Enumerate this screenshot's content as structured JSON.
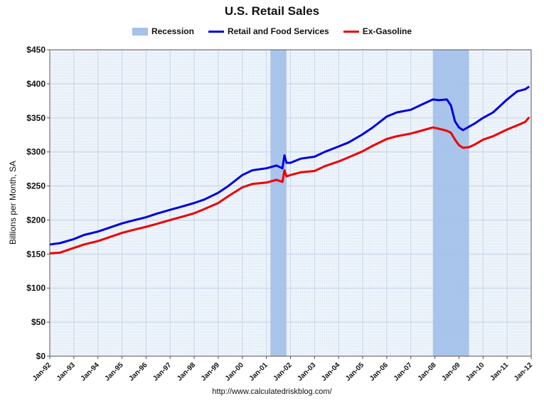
{
  "chart_data": {
    "type": "line",
    "title": "U.S. Retail Sales",
    "ylabel": "Billions per Month, SA",
    "xlabel": "",
    "ylim": [
      0,
      450
    ],
    "xlim": [
      "1992-01",
      "2012-01"
    ],
    "yticks": [
      "$0",
      "$50",
      "$100",
      "$150",
      "$200",
      "$250",
      "$300",
      "$350",
      "$400",
      "$450"
    ],
    "ytick_values": [
      0,
      50,
      100,
      150,
      200,
      250,
      300,
      350,
      400,
      450
    ],
    "xticks": [
      "Jan-92",
      "Jan-93",
      "Jan-94",
      "Jan-95",
      "Jan-96",
      "Jan-97",
      "Jan-98",
      "Jan-99",
      "Jan-00",
      "Jan-01",
      "Jan-02",
      "Jan-03",
      "Jan-04",
      "Jan-05",
      "Jan-06",
      "Jan-07",
      "Jan-08",
      "Jan-09",
      "Jan-10",
      "Jan-11",
      "Jan-12"
    ],
    "grid": true,
    "legend_position": "top",
    "legend": [
      "Recession",
      "Retail and Food Services",
      "Ex-Gasoline"
    ],
    "recessions": [
      {
        "start": "2001-03",
        "end": "2001-11"
      },
      {
        "start": "2007-12",
        "end": "2009-06"
      }
    ],
    "series": [
      {
        "name": "Retail and Food Services",
        "color": "#0000dd",
        "points": [
          [
            "1992-01",
            164
          ],
          [
            "1992-06",
            166
          ],
          [
            "1993-01",
            172
          ],
          [
            "1993-06",
            178
          ],
          [
            "1994-01",
            183
          ],
          [
            "1994-06",
            188
          ],
          [
            "1995-01",
            195
          ],
          [
            "1995-06",
            199
          ],
          [
            "1996-01",
            204
          ],
          [
            "1996-06",
            209
          ],
          [
            "1997-01",
            215
          ],
          [
            "1997-06",
            219
          ],
          [
            "1998-01",
            225
          ],
          [
            "1998-06",
            230
          ],
          [
            "1999-01",
            240
          ],
          [
            "1999-06",
            250
          ],
          [
            "2000-01",
            266
          ],
          [
            "2000-06",
            273
          ],
          [
            "2001-01",
            276
          ],
          [
            "2001-06",
            280
          ],
          [
            "2001-09",
            276
          ],
          [
            "2001-10",
            295
          ],
          [
            "2001-11",
            284
          ],
          [
            "2002-01",
            284
          ],
          [
            "2002-06",
            290
          ],
          [
            "2003-01",
            293
          ],
          [
            "2003-06",
            300
          ],
          [
            "2004-01",
            308
          ],
          [
            "2004-06",
            314
          ],
          [
            "2005-01",
            326
          ],
          [
            "2005-06",
            336
          ],
          [
            "2006-01",
            352
          ],
          [
            "2006-06",
            358
          ],
          [
            "2007-01",
            362
          ],
          [
            "2007-06",
            369
          ],
          [
            "2007-12",
            377
          ],
          [
            "2008-03",
            376
          ],
          [
            "2008-07",
            377
          ],
          [
            "2008-09",
            368
          ],
          [
            "2008-11",
            345
          ],
          [
            "2009-01",
            336
          ],
          [
            "2009-03",
            332
          ],
          [
            "2009-06",
            337
          ],
          [
            "2009-09",
            342
          ],
          [
            "2010-01",
            350
          ],
          [
            "2010-06",
            358
          ],
          [
            "2011-01",
            377
          ],
          [
            "2011-06",
            389
          ],
          [
            "2011-10",
            392
          ],
          [
            "2011-12",
            396
          ]
        ]
      },
      {
        "name": "Ex-Gasoline",
        "color": "#ee0000",
        "points": [
          [
            "1992-01",
            151
          ],
          [
            "1992-06",
            152
          ],
          [
            "1993-01",
            159
          ],
          [
            "1993-06",
            164
          ],
          [
            "1994-01",
            169
          ],
          [
            "1994-06",
            174
          ],
          [
            "1995-01",
            181
          ],
          [
            "1995-06",
            185
          ],
          [
            "1996-01",
            190
          ],
          [
            "1996-06",
            194
          ],
          [
            "1997-01",
            200
          ],
          [
            "1997-06",
            204
          ],
          [
            "1998-01",
            210
          ],
          [
            "1998-06",
            216
          ],
          [
            "1999-01",
            225
          ],
          [
            "1999-06",
            235
          ],
          [
            "2000-01",
            248
          ],
          [
            "2000-06",
            253
          ],
          [
            "2001-01",
            255
          ],
          [
            "2001-06",
            259
          ],
          [
            "2001-09",
            256
          ],
          [
            "2001-10",
            273
          ],
          [
            "2001-11",
            264
          ],
          [
            "2002-01",
            266
          ],
          [
            "2002-06",
            270
          ],
          [
            "2003-01",
            272
          ],
          [
            "2003-06",
            279
          ],
          [
            "2004-01",
            286
          ],
          [
            "2004-06",
            292
          ],
          [
            "2005-01",
            301
          ],
          [
            "2005-06",
            309
          ],
          [
            "2006-01",
            319
          ],
          [
            "2006-06",
            323
          ],
          [
            "2007-01",
            327
          ],
          [
            "2007-06",
            331
          ],
          [
            "2007-12",
            336
          ],
          [
            "2008-03",
            334
          ],
          [
            "2008-07",
            331
          ],
          [
            "2008-09",
            328
          ],
          [
            "2008-11",
            318
          ],
          [
            "2009-01",
            310
          ],
          [
            "2009-03",
            306
          ],
          [
            "2009-06",
            307
          ],
          [
            "2009-09",
            311
          ],
          [
            "2010-01",
            318
          ],
          [
            "2010-06",
            323
          ],
          [
            "2011-01",
            333
          ],
          [
            "2011-06",
            339
          ],
          [
            "2011-10",
            344
          ],
          [
            "2011-12",
            351
          ]
        ]
      }
    ]
  },
  "footer": {
    "source": "http://www.calculatedriskblog.com/"
  }
}
